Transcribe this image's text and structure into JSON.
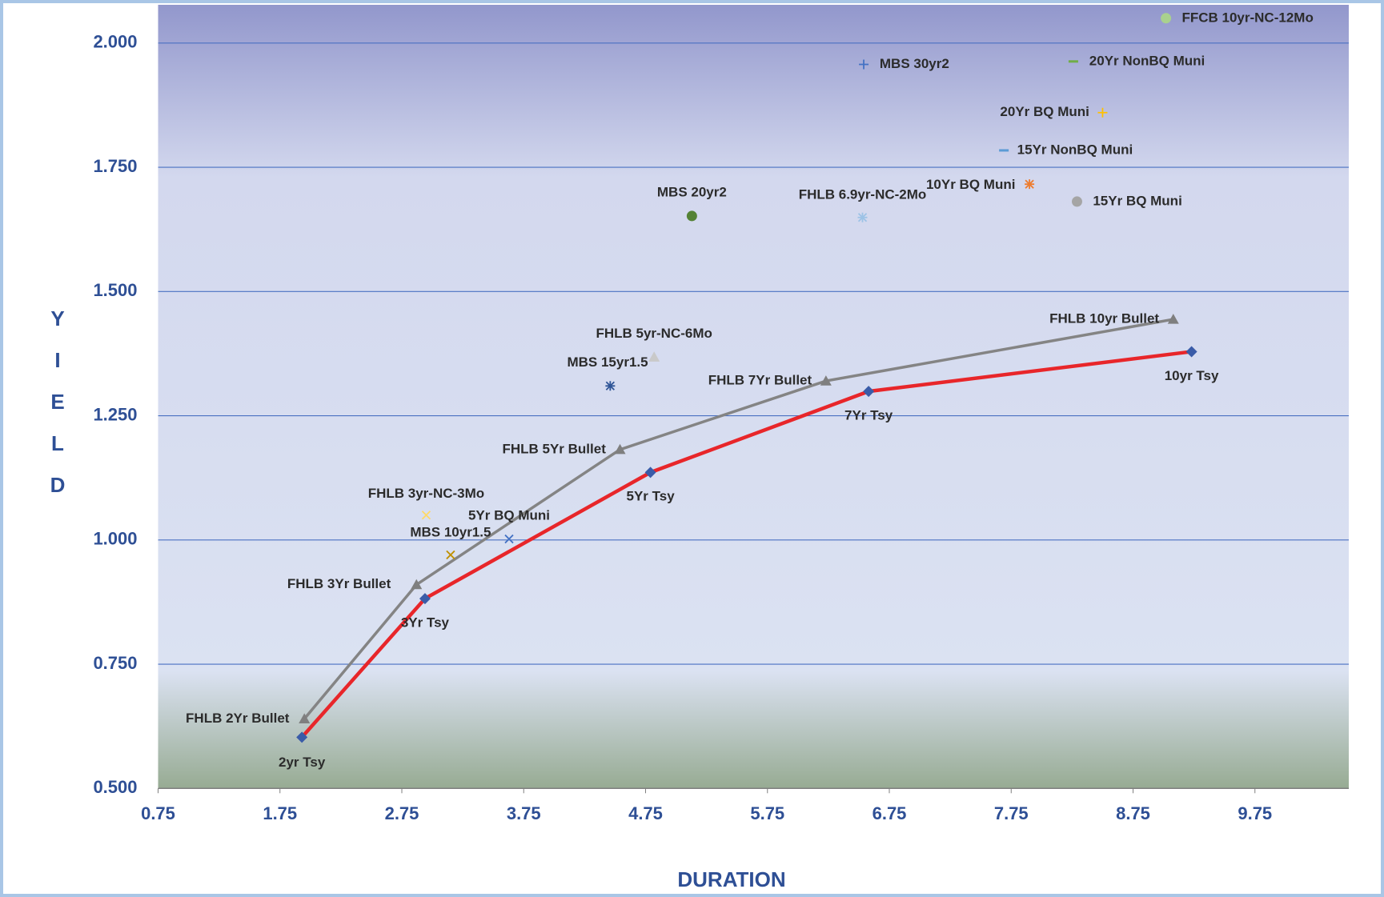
{
  "chart_data": {
    "type": "scatter",
    "xlabel": "DURATION",
    "ylabel": "YIELD",
    "xlim": [
      0.75,
      10.52
    ],
    "ylim": [
      0.5,
      2.077
    ],
    "xticks": [
      0.75,
      1.75,
      2.75,
      3.75,
      4.75,
      5.75,
      6.75,
      7.75,
      8.75,
      9.75
    ],
    "yticks": [
      {
        "value": 0.5,
        "label": "0.500"
      },
      {
        "value": 0.75,
        "label": "0.750"
      },
      {
        "value": 1,
        "label": "1.000"
      },
      {
        "value": 1.25,
        "label": "1.250"
      },
      {
        "value": 1.5,
        "label": "1.500"
      },
      {
        "value": 1.75,
        "label": "1.750"
      },
      {
        "value": 2,
        "label": "2.000"
      }
    ],
    "grid": true,
    "series": [
      {
        "color": "#e8262a",
        "marker_color": "#3a5ca8",
        "marker": "diamond",
        "line": true,
        "labels": [
          "2yr Tsy",
          "3Yr Tsy",
          "5Yr Tsy",
          "7Yr Tsy",
          "10yr Tsy"
        ],
        "x": [
          1.93,
          2.94,
          4.79,
          6.58,
          9.23
        ],
        "values": [
          0.603,
          0.882,
          1.136,
          1.299,
          1.379
        ]
      },
      {
        "color": "#848484",
        "marker_color": "#7f7f7f",
        "marker": "triangle",
        "line": true,
        "labels": [
          "FHLB 2Yr Bullet",
          "FHLB 3Yr Bullet",
          "FHLB 5Yr Bullet",
          "FHLB 7Yr Bullet",
          "FHLB 10yr Bullet"
        ],
        "x": [
          1.95,
          2.87,
          4.54,
          6.23,
          9.08
        ],
        "values": [
          0.64,
          0.91,
          1.182,
          1.32,
          1.444
        ]
      },
      {
        "color": "#a9d18e",
        "marker": "circle",
        "labels": [
          "FFCB 10yr-NC-12Mo"
        ],
        "x": [
          9.02
        ],
        "values": [
          2.05
        ]
      },
      {
        "color": "#4472c4",
        "marker": "plus",
        "labels": [
          "MBS 30yr2"
        ],
        "x": [
          6.54
        ],
        "values": [
          1.957
        ]
      },
      {
        "color": "#70ad47",
        "marker": "dash",
        "labels": [
          "20Yr NonBQ Muni"
        ],
        "x": [
          8.26
        ],
        "values": [
          1.963
        ]
      },
      {
        "color": "#ffc000",
        "marker": "plus",
        "labels": [
          "20Yr BQ Muni"
        ],
        "x": [
          8.5
        ],
        "values": [
          1.86
        ]
      },
      {
        "color": "#5b9bd5",
        "marker": "dash",
        "labels": [
          "15Yr NonBQ Muni"
        ],
        "x": [
          7.69
        ],
        "values": [
          1.784
        ]
      },
      {
        "color": "#ed7d31",
        "marker": "asterisk",
        "labels": [
          "10Yr BQ Muni"
        ],
        "x": [
          7.9
        ],
        "values": [
          1.716
        ]
      },
      {
        "color": "#a5a5a5",
        "marker": "circle",
        "labels": [
          "15Yr BQ Muni"
        ],
        "x": [
          8.29
        ],
        "values": [
          1.681
        ]
      },
      {
        "color": "#548235",
        "marker": "circle",
        "labels": [
          "MBS 20yr2"
        ],
        "x": [
          5.13
        ],
        "values": [
          1.652
        ]
      },
      {
        "color": "#9dc3e6",
        "marker": "asterisk",
        "labels": [
          "FHLB 6.9yr-NC-2Mo"
        ],
        "x": [
          6.53
        ],
        "values": [
          1.649
        ]
      },
      {
        "color": "#c9c9c9",
        "marker": "triangle",
        "labels": [
          "FHLB 5yr-NC-6Mo"
        ],
        "x": [
          4.82
        ],
        "values": [
          1.368
        ]
      },
      {
        "color": "#2f5597",
        "marker": "asterisk",
        "labels": [
          "MBS 15yr1.5"
        ],
        "x": [
          4.46
        ],
        "values": [
          1.31
        ]
      },
      {
        "color": "#ffd966",
        "marker": "x",
        "labels": [
          "FHLB 3yr-NC-3Mo"
        ],
        "x": [
          2.95
        ],
        "values": [
          1.05
        ]
      },
      {
        "color": "#4472c4",
        "marker": "x",
        "labels": [
          "5Yr BQ Muni"
        ],
        "x": [
          3.63
        ],
        "values": [
          1.002
        ]
      },
      {
        "color": "#bf9000",
        "marker": "x",
        "labels": [
          "MBS 10yr1.5"
        ],
        "x": [
          3.15
        ],
        "values": [
          0.97
        ]
      }
    ]
  }
}
